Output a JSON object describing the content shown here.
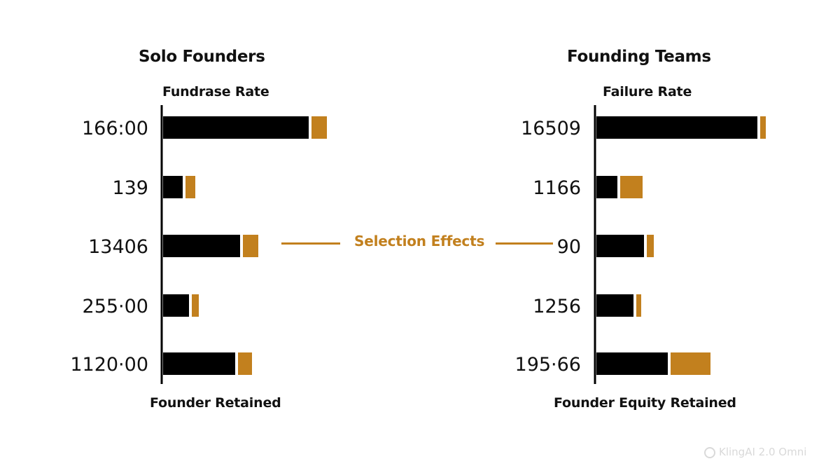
{
  "colors": {
    "primary": "#000000",
    "accent": "#c2801e",
    "text": "#111111"
  },
  "annotation": {
    "text": "Selection Effects"
  },
  "watermark": {
    "text": "KlingAI 2.0 Omni",
    "icon": "kling-logo-icon"
  },
  "chart_data": [
    {
      "type": "bar",
      "orientation": "horizontal",
      "stacked": true,
      "title": "Solo Founders",
      "ylabel": "Fundrase Rate",
      "xlabel": "Founder Retained",
      "categories": [
        "166:00",
        "139",
        "13406",
        "255·00",
        "1120·00"
      ],
      "series": [
        {
          "color": "#000000",
          "values": [
            208,
            28,
            110,
            37,
            103
          ]
        },
        {
          "color": "#c2801e",
          "values": [
            22,
            14,
            22,
            10,
            20
          ]
        }
      ],
      "xlim": [
        0,
        250
      ],
      "grid": false,
      "legend": "none"
    },
    {
      "type": "bar",
      "orientation": "horizontal",
      "stacked": true,
      "title": "Founding Teams",
      "ylabel": "Failure Rate",
      "xlabel": "Founder Equity Retained",
      "categories": [
        "16509",
        "1166",
        "90",
        "1256",
        "195·66"
      ],
      "series": [
        {
          "color": "#000000",
          "values": [
            230,
            30,
            68,
            53,
            102
          ]
        },
        {
          "color": "#c2801e",
          "values": [
            8,
            32,
            10,
            7,
            57
          ]
        }
      ],
      "xlim": [
        0,
        250
      ],
      "grid": false,
      "legend": "none"
    }
  ]
}
